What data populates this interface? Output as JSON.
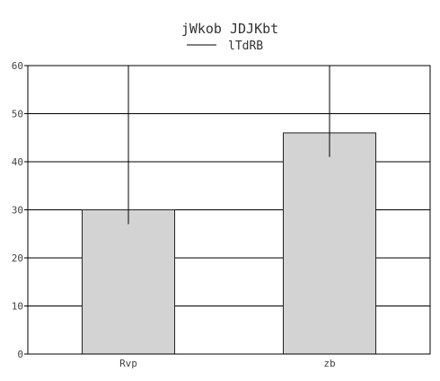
{
  "chart_data": {
    "type": "bar",
    "title": "jWkob JDJKbt",
    "categories": [
      "Rvp",
      "zb"
    ],
    "series": [
      {
        "name": "lTdRB",
        "values": [
          30,
          46
        ],
        "error_low": [
          27,
          41
        ],
        "error_high": [
          60,
          60
        ]
      }
    ],
    "ylim": [
      0,
      60
    ],
    "yticks": [
      0,
      10,
      20,
      30,
      40,
      50,
      60
    ],
    "grid": true,
    "legend_placement": "top-center",
    "colors": {
      "bar_fill": "#d3d3d3",
      "bar_stroke": "#222222",
      "grid": "#000000",
      "error_bar": "#000000"
    }
  }
}
